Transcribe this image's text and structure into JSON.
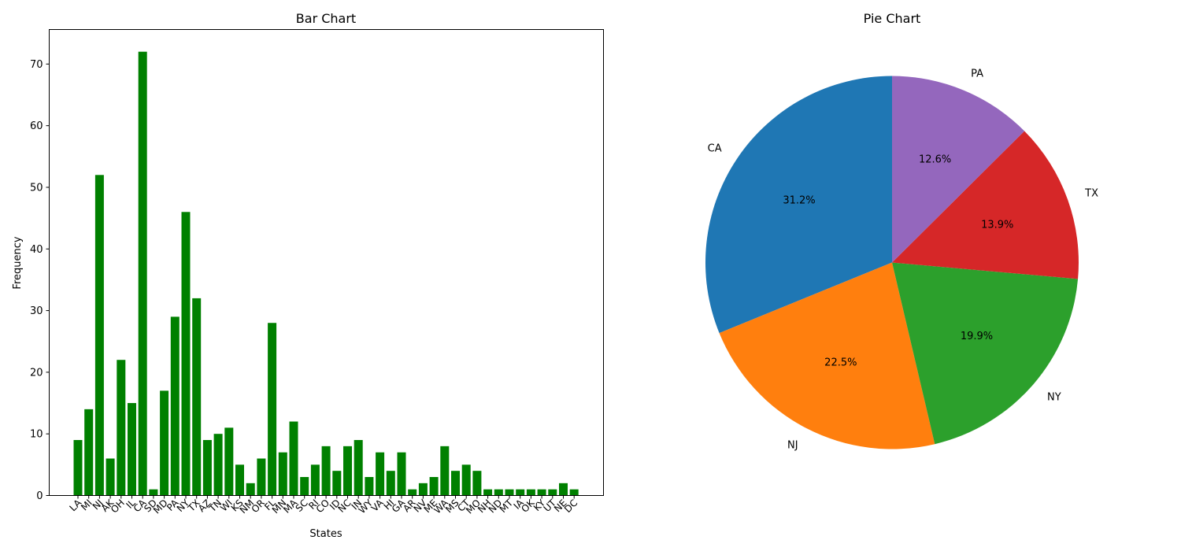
{
  "chart_data": [
    {
      "type": "bar",
      "title": "Bar Chart",
      "xlabel": "States",
      "ylabel": "Frequency",
      "ylim": [
        0,
        75.6
      ],
      "yticks": [
        0,
        10,
        20,
        30,
        40,
        50,
        60,
        70
      ],
      "grid": false,
      "bar_color": "#008000",
      "categories": [
        "LA",
        "MI",
        "NJ",
        "AK",
        "OH",
        "IL",
        "CA",
        "SD",
        "MD",
        "PA",
        "NY",
        "TX",
        "AZ",
        "TN",
        "WI",
        "KS",
        "NM",
        "OR",
        "FL",
        "MN",
        "MA",
        "SC",
        "RI",
        "CO",
        "ID",
        "NC",
        "IN",
        "WY",
        "VA",
        "HI",
        "GA",
        "AR",
        "NV",
        "ME",
        "WA",
        "MS",
        "CT",
        "MO",
        "NH",
        "ND",
        "MT",
        "IA",
        "OK",
        "KY",
        "UT",
        "NE",
        "DC"
      ],
      "values": [
        9,
        14,
        52,
        6,
        22,
        15,
        72,
        1,
        17,
        29,
        46,
        32,
        9,
        10,
        11,
        5,
        2,
        6,
        28,
        7,
        12,
        3,
        5,
        8,
        4,
        8,
        9,
        3,
        7,
        4,
        7,
        1,
        2,
        3,
        8,
        4,
        5,
        4,
        1,
        1,
        1,
        1,
        1,
        1,
        1,
        2,
        1
      ]
    },
    {
      "type": "pie",
      "title": "Pie Chart",
      "slices": [
        {
          "label": "CA",
          "value": 72,
          "pct": "31.2%",
          "color": "#1f77b4"
        },
        {
          "label": "NJ",
          "value": 52,
          "pct": "22.5%",
          "color": "#ff7f0e"
        },
        {
          "label": "NY",
          "value": 46,
          "pct": "19.9%",
          "color": "#2ca02c"
        },
        {
          "label": "TX",
          "value": 32,
          "pct": "13.9%",
          "color": "#d62728"
        },
        {
          "label": "PA",
          "value": 29,
          "pct": "12.6%",
          "color": "#9467bd"
        }
      ],
      "start_angle": 90,
      "direction": "counterclockwise"
    }
  ]
}
